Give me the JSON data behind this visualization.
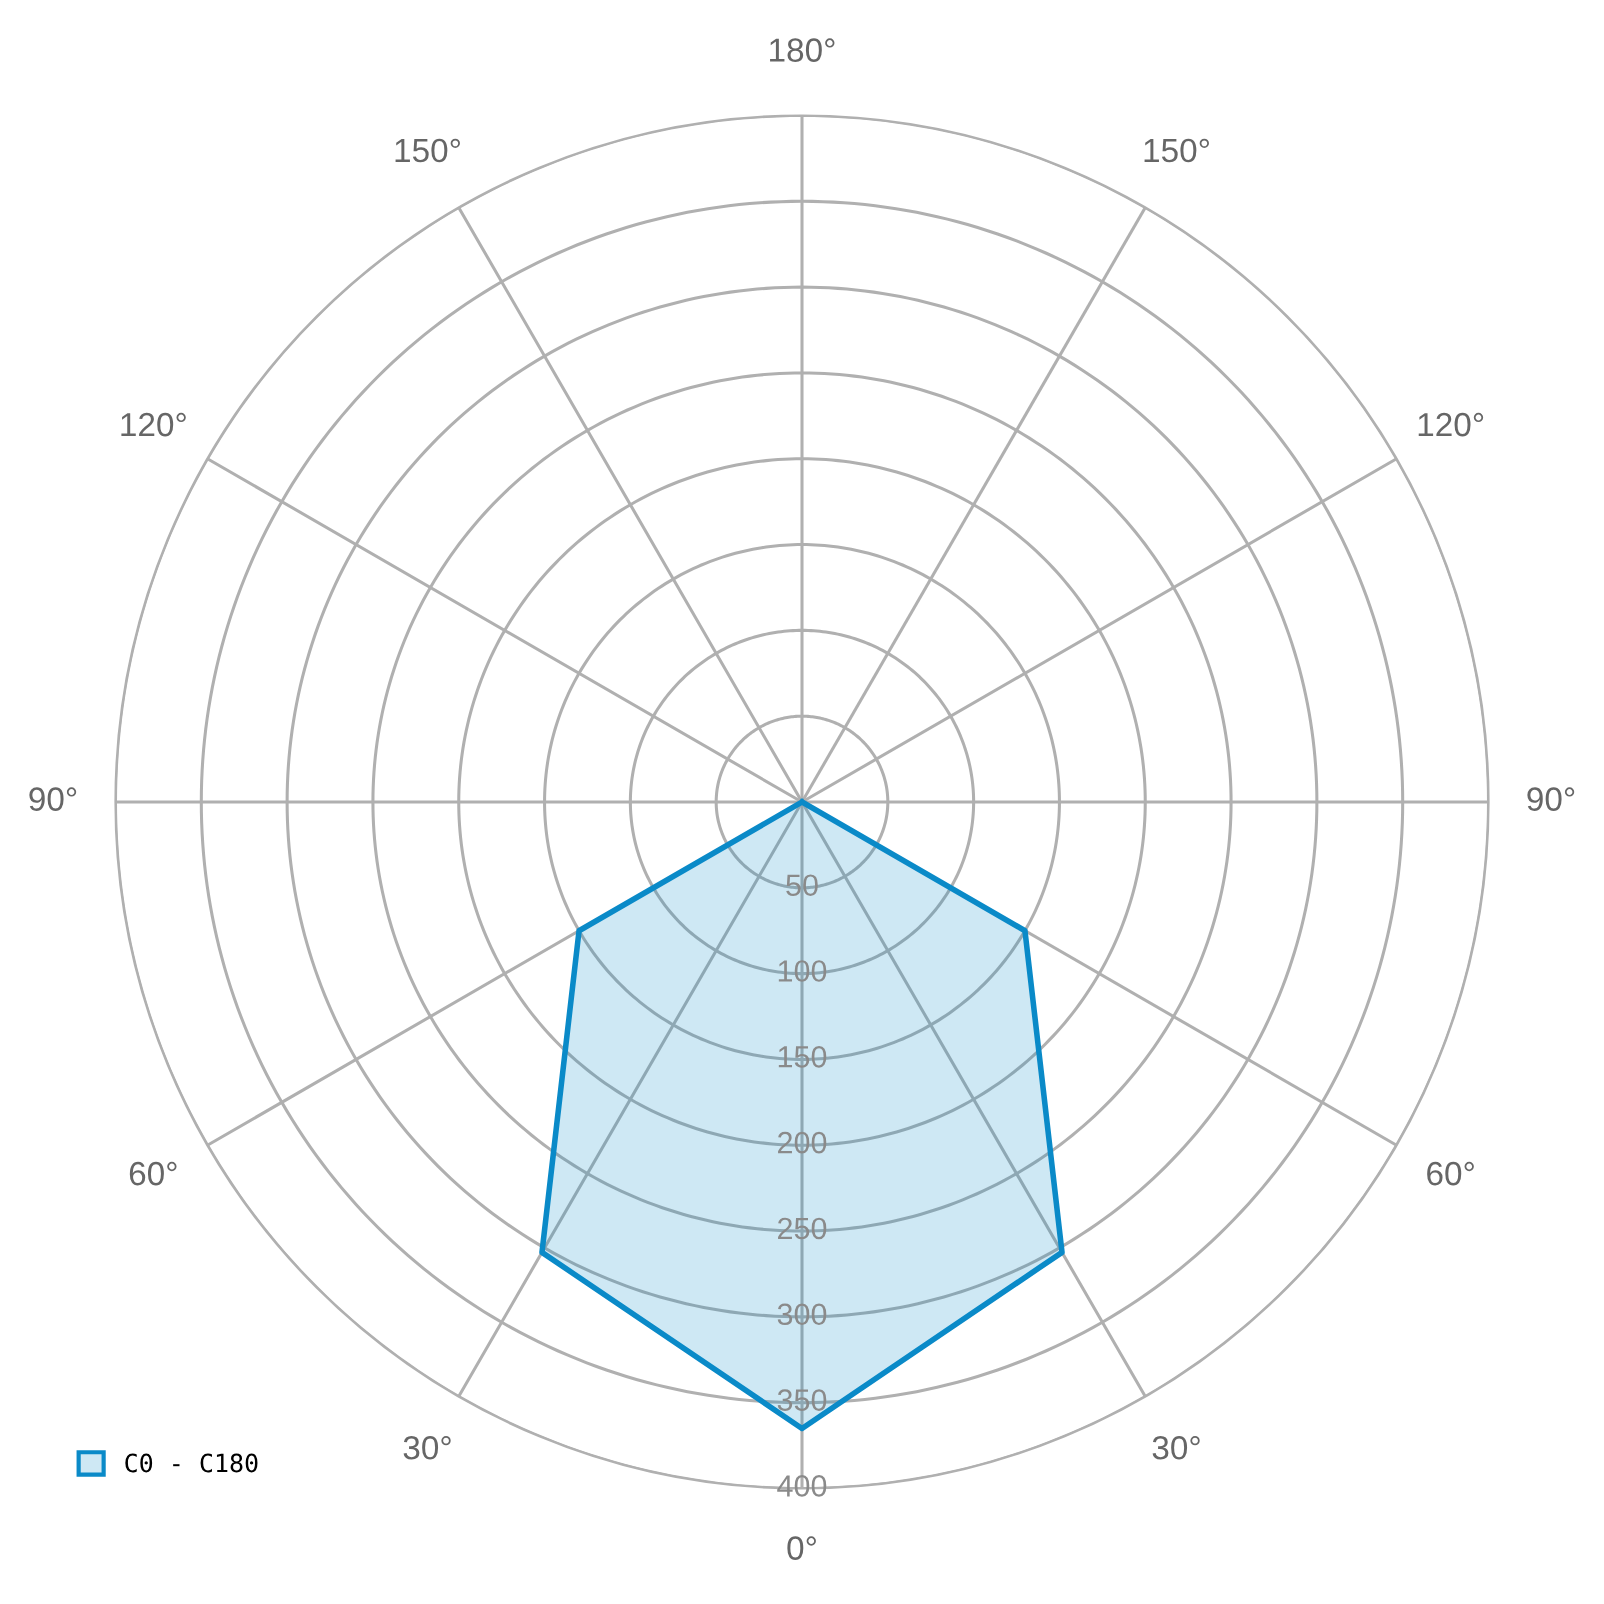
{
  "chart_data": {
    "type": "radar",
    "categories": [
      "180°",
      "150°",
      "120°",
      "90°",
      "60°",
      "30°",
      "0°",
      "30°",
      "60°",
      "90°",
      "120°",
      "150°"
    ],
    "ylim": [
      0,
      400
    ],
    "yticks": [
      50,
      100,
      150,
      200,
      250,
      300,
      350,
      400
    ],
    "grid": true,
    "legend": "bottom left",
    "series": [
      {
        "name": "C0 - C180",
        "color": "#0a8ac8",
        "values": [
          0,
          0,
          0,
          0,
          150,
          303,
          365,
          303,
          150,
          0,
          0,
          0
        ]
      }
    ]
  }
}
